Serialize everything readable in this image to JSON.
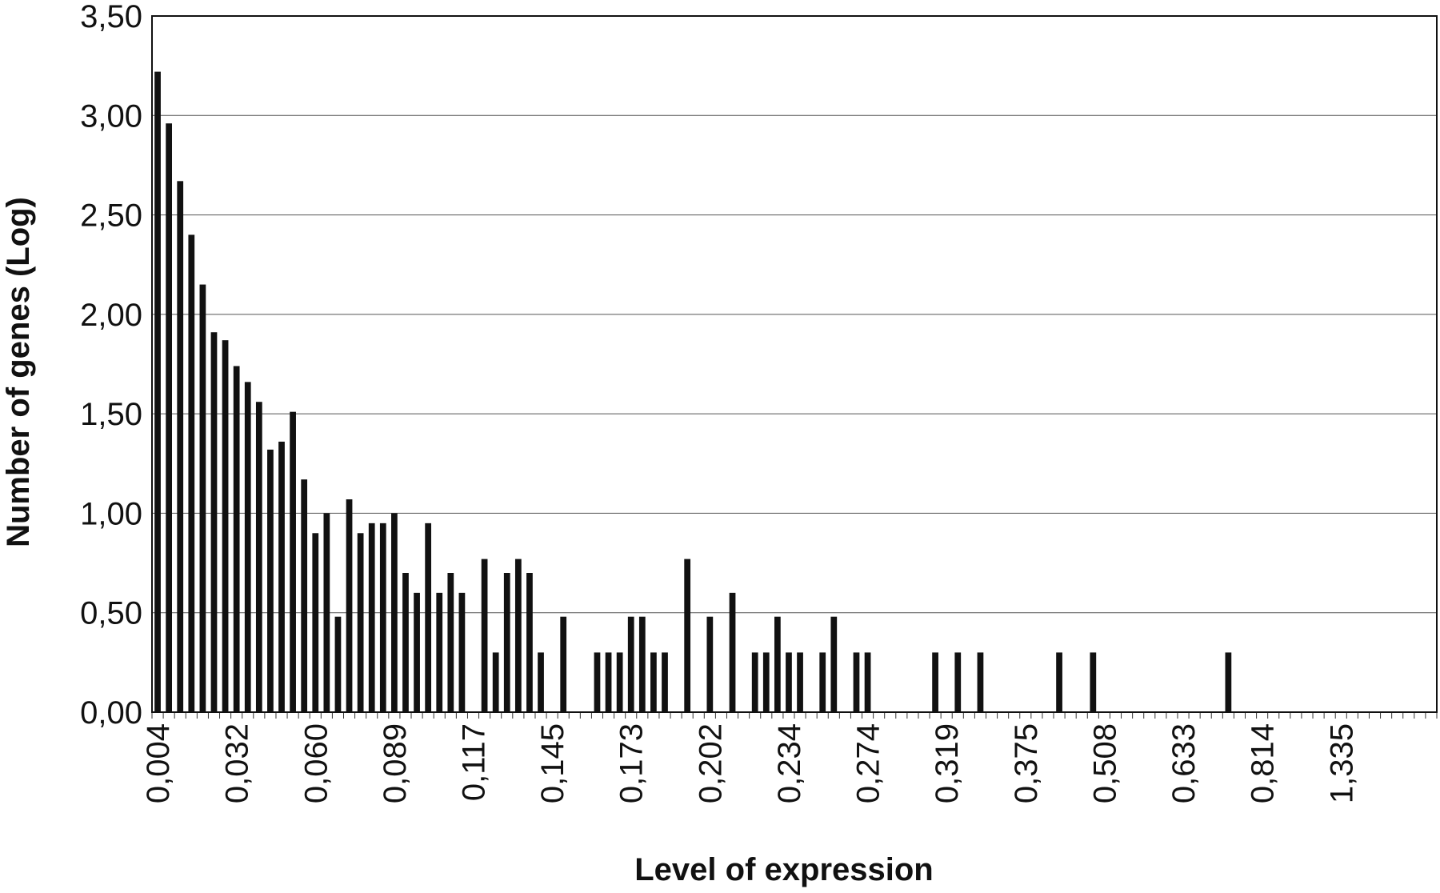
{
  "chart_data": {
    "type": "bar",
    "xlabel": "Level of expression",
    "ylabel": "Number of genes (Log)",
    "ylim": [
      0,
      3.5
    ],
    "y_ticks": [
      "0,00",
      "0,50",
      "1,00",
      "1,50",
      "2,00",
      "2,50",
      "3,00",
      "3,50"
    ],
    "x_tick_labels": [
      "0,004",
      "0,032",
      "0,060",
      "0,089",
      "0,117",
      "0,145",
      "0,173",
      "0,202",
      "0,234",
      "0,274",
      "0,319",
      "0,375",
      "0,508",
      "0,633",
      "0,814",
      "1,335"
    ],
    "x_tick_spacing": 7,
    "bin_count": 114,
    "grid": "horizontal",
    "series": [
      {
        "values": [
          3.22,
          2.96,
          2.67,
          2.4,
          2.15,
          1.91,
          1.87,
          1.74,
          1.66,
          1.56,
          1.32,
          1.36,
          1.51,
          1.17,
          0.9,
          1.0,
          0.48,
          1.07,
          0.9,
          0.95,
          0.95,
          1.0,
          0.7,
          0.6,
          0.95,
          0.6,
          0.7,
          0.6,
          0,
          0.77,
          0.3,
          0.7,
          0.77,
          0.7,
          0.3,
          0,
          0.48,
          0,
          0,
          0.3,
          0.3,
          0.3,
          0.48,
          0.48,
          0.3,
          0.3,
          0,
          0.77,
          0,
          0.48,
          0,
          0.6,
          0,
          0.3,
          0.3,
          0.48,
          0.3,
          0.3,
          0,
          0.3,
          0.48,
          0,
          0.3,
          0.3,
          0,
          0,
          0,
          0,
          0,
          0.3,
          0,
          0.3,
          0,
          0.3,
          0,
          0,
          0,
          0,
          0,
          0,
          0.3,
          0,
          0,
          0.3,
          0,
          0,
          0,
          0,
          0,
          0,
          0,
          0,
          0,
          0,
          0,
          0.3,
          0,
          0,
          0,
          0,
          0,
          0,
          0,
          0,
          0,
          0,
          0,
          0,
          0,
          0,
          0,
          0,
          0,
          0
        ]
      }
    ]
  }
}
